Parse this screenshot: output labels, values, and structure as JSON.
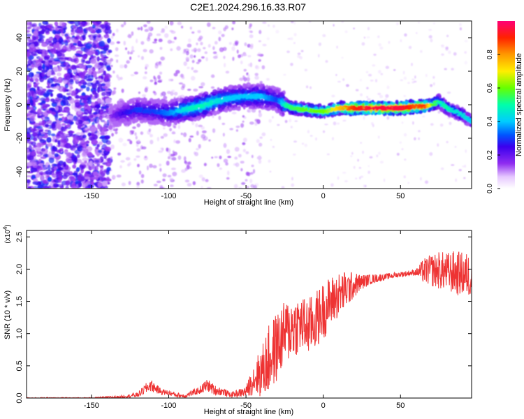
{
  "title": "C2E1.2024.296.16.33.R07",
  "chart_data": [
    {
      "type": "heatmap",
      "title": "C2E1.2024.296.16.33.R07",
      "xlabel": "Height of straight line (km)",
      "ylabel": "Frequency (Hz)",
      "xlim": [
        -192,
        96
      ],
      "ylim": [
        -50,
        50
      ],
      "x_ticks": [
        -150,
        -100,
        -50,
        0,
        50
      ],
      "y_ticks": [
        -40,
        -20,
        0,
        20,
        40
      ],
      "colorbar": {
        "label": "Normalized spectral amplitude",
        "range": [
          0,
          1
        ],
        "ticks": [
          0.0,
          0.2,
          0.4,
          0.6,
          0.8
        ]
      },
      "ridge": {
        "x": [
          -138,
          -130,
          -120,
          -110,
          -100,
          -90,
          -80,
          -70,
          -60,
          -50,
          -40,
          -30,
          -25,
          -20,
          -10,
          0,
          10,
          20,
          30,
          40,
          50,
          60,
          65,
          70,
          75,
          80,
          85,
          90,
          96
        ],
        "frequency": [
          -7,
          -5,
          -3,
          -4,
          -5,
          -3,
          -1,
          2,
          4,
          5,
          5,
          3,
          0,
          -2,
          -3,
          -4,
          -2,
          -2,
          -2,
          -2,
          -2,
          -1,
          -1,
          0,
          2,
          -2,
          -4,
          -6,
          -10
        ],
        "amplitude": [
          0.15,
          0.25,
          0.3,
          0.3,
          0.35,
          0.45,
          0.5,
          0.45,
          0.4,
          0.4,
          0.4,
          0.3,
          0.5,
          0.55,
          0.6,
          0.6,
          0.75,
          0.9,
          0.95,
          0.95,
          0.95,
          0.85,
          0.9,
          0.6,
          0.5,
          0.5,
          0.45,
          0.45,
          0.4
        ]
      },
      "noise_region_x": [
        -192,
        -138
      ]
    },
    {
      "type": "line",
      "xlabel": "Height of straight line (km)",
      "ylabel": "SNR (10 * v/v)",
      "multiplier_label": "(x10",
      "multiplier_exponent": "4",
      "multiplier_close": ")",
      "xlim": [
        -192,
        96
      ],
      "ylim": [
        0,
        2.6
      ],
      "x_ticks": [
        -150,
        -100,
        -50,
        0,
        50
      ],
      "y_ticks": [
        0.0,
        0.5,
        1.0,
        1.5,
        2.0,
        2.5
      ],
      "y_tick_labels": [
        "0.0",
        "0.5",
        "1.0",
        "1.5",
        "2.0",
        "2.5"
      ],
      "color": "#ee3333",
      "x": [
        -192,
        -170,
        -150,
        -130,
        -120,
        -112,
        -105,
        -100,
        -95,
        -90,
        -80,
        -75,
        -70,
        -65,
        -60,
        -50,
        -45,
        -40,
        -35,
        -30,
        -25,
        -20,
        -15,
        -10,
        -5,
        0,
        5,
        10,
        15,
        20,
        25,
        30,
        40,
        50,
        60,
        65,
        70,
        75,
        80,
        85,
        90,
        96
      ],
      "values": [
        0.0,
        0.0,
        0.0,
        0.02,
        0.05,
        0.2,
        0.1,
        0.08,
        0.05,
        0.03,
        0.12,
        0.2,
        0.12,
        0.1,
        0.05,
        0.1,
        0.3,
        0.4,
        0.6,
        0.8,
        1.0,
        1.1,
        1.15,
        1.1,
        1.2,
        1.35,
        1.5,
        1.6,
        1.68,
        1.75,
        1.8,
        1.84,
        1.88,
        1.92,
        1.95,
        1.97,
        1.98,
        1.98,
        1.96,
        1.94,
        1.92,
        1.9
      ],
      "noise_amplitude": [
        0.01,
        0.01,
        0.01,
        0.02,
        0.04,
        0.1,
        0.05,
        0.04,
        0.04,
        0.03,
        0.06,
        0.1,
        0.08,
        0.06,
        0.04,
        0.08,
        0.25,
        0.4,
        0.55,
        0.55,
        0.5,
        0.5,
        0.45,
        0.45,
        0.45,
        0.45,
        0.4,
        0.35,
        0.3,
        0.2,
        0.12,
        0.08,
        0.05,
        0.04,
        0.05,
        0.2,
        0.25,
        0.3,
        0.3,
        0.35,
        0.35,
        0.35
      ]
    }
  ]
}
